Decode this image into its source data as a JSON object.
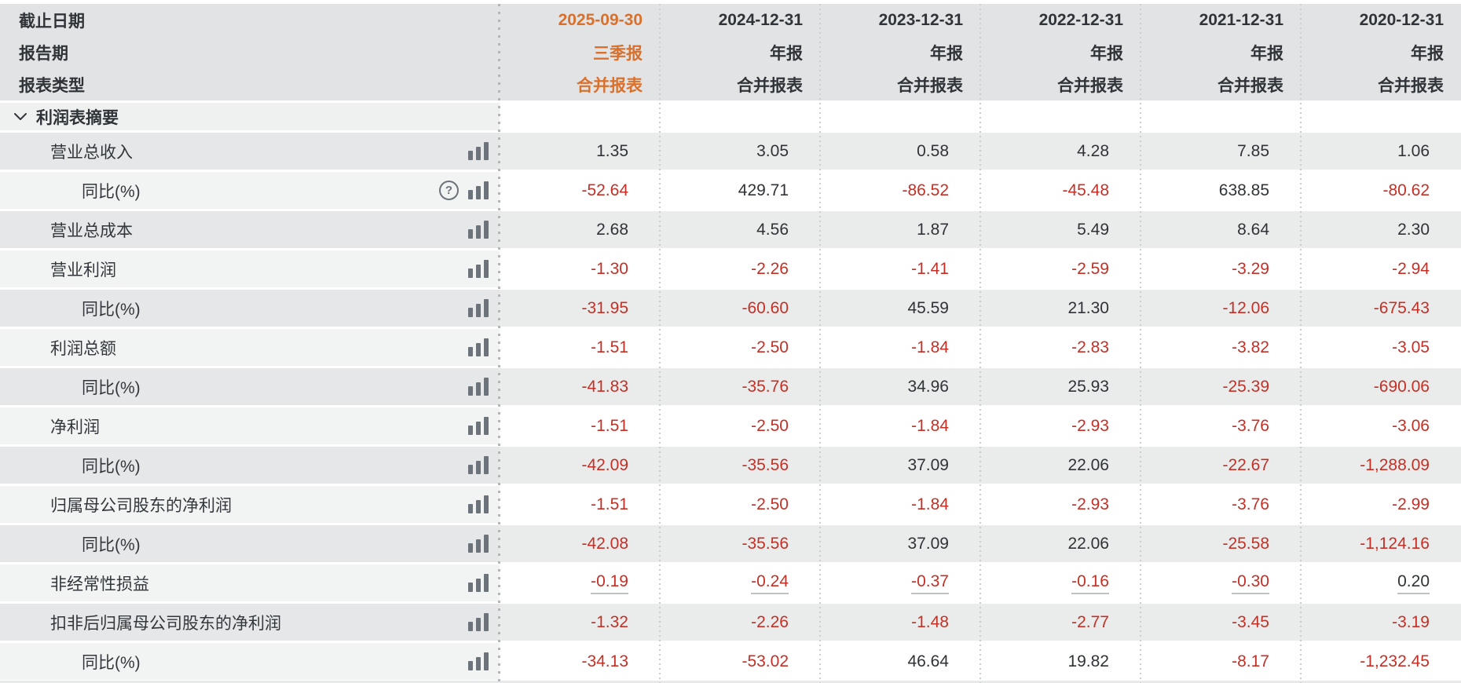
{
  "header": {
    "row_labels": [
      "截止日期",
      "报告期",
      "报表类型"
    ],
    "columns": [
      {
        "date": "2025-09-30",
        "period": "三季报",
        "report_type": "合并报表",
        "highlight": true
      },
      {
        "date": "2024-12-31",
        "period": "年报",
        "report_type": "合并报表",
        "highlight": false
      },
      {
        "date": "2023-12-31",
        "period": "年报",
        "report_type": "合并报表",
        "highlight": false
      },
      {
        "date": "2022-12-31",
        "period": "年报",
        "report_type": "合并报表",
        "highlight": false
      },
      {
        "date": "2021-12-31",
        "period": "年报",
        "report_type": "合并报表",
        "highlight": false
      },
      {
        "date": "2020-12-31",
        "period": "年报",
        "report_type": "合并报表",
        "highlight": false
      }
    ]
  },
  "section": {
    "title": "利润表摘要"
  },
  "icon_glyphs": {
    "help": "?"
  },
  "rows": [
    {
      "label": "营业总收入",
      "indent": 1,
      "icons": [
        "bar-chart-icon"
      ],
      "underline": false,
      "values": [
        "1.35",
        "3.05",
        "0.58",
        "4.28",
        "7.85",
        "1.06"
      ]
    },
    {
      "label": "同比(%)",
      "indent": 2,
      "icons": [
        "help-icon",
        "bar-chart-icon"
      ],
      "underline": false,
      "values": [
        "-52.64",
        "429.71",
        "-86.52",
        "-45.48",
        "638.85",
        "-80.62"
      ]
    },
    {
      "label": "营业总成本",
      "indent": 1,
      "icons": [
        "bar-chart-icon"
      ],
      "underline": false,
      "values": [
        "2.68",
        "4.56",
        "1.87",
        "5.49",
        "8.64",
        "2.30"
      ]
    },
    {
      "label": "营业利润",
      "indent": 1,
      "icons": [
        "bar-chart-icon"
      ],
      "underline": false,
      "values": [
        "-1.30",
        "-2.26",
        "-1.41",
        "-2.59",
        "-3.29",
        "-2.94"
      ]
    },
    {
      "label": "同比(%)",
      "indent": 2,
      "icons": [
        "bar-chart-icon"
      ],
      "underline": false,
      "values": [
        "-31.95",
        "-60.60",
        "45.59",
        "21.30",
        "-12.06",
        "-675.43"
      ]
    },
    {
      "label": "利润总额",
      "indent": 1,
      "icons": [
        "bar-chart-icon"
      ],
      "underline": false,
      "values": [
        "-1.51",
        "-2.50",
        "-1.84",
        "-2.83",
        "-3.82",
        "-3.05"
      ]
    },
    {
      "label": "同比(%)",
      "indent": 2,
      "icons": [
        "bar-chart-icon"
      ],
      "underline": false,
      "values": [
        "-41.83",
        "-35.76",
        "34.96",
        "25.93",
        "-25.39",
        "-690.06"
      ]
    },
    {
      "label": "净利润",
      "indent": 1,
      "icons": [
        "bar-chart-icon"
      ],
      "underline": false,
      "values": [
        "-1.51",
        "-2.50",
        "-1.84",
        "-2.93",
        "-3.76",
        "-3.06"
      ]
    },
    {
      "label": "同比(%)",
      "indent": 2,
      "icons": [
        "bar-chart-icon"
      ],
      "underline": false,
      "values": [
        "-42.09",
        "-35.56",
        "37.09",
        "22.06",
        "-22.67",
        "-1,288.09"
      ]
    },
    {
      "label": "归属母公司股东的净利润",
      "indent": 1,
      "icons": [
        "bar-chart-icon"
      ],
      "underline": false,
      "values": [
        "-1.51",
        "-2.50",
        "-1.84",
        "-2.93",
        "-3.76",
        "-2.99"
      ]
    },
    {
      "label": "同比(%)",
      "indent": 2,
      "icons": [
        "bar-chart-icon"
      ],
      "underline": false,
      "values": [
        "-42.08",
        "-35.56",
        "37.09",
        "22.06",
        "-25.58",
        "-1,124.16"
      ]
    },
    {
      "label": "非经常性损益",
      "indent": 1,
      "icons": [
        "bar-chart-icon"
      ],
      "underline": true,
      "values": [
        "-0.19",
        "-0.24",
        "-0.37",
        "-0.16",
        "-0.30",
        "0.20"
      ]
    },
    {
      "label": "扣非后归属母公司股东的净利润",
      "indent": 1,
      "icons": [
        "bar-chart-icon"
      ],
      "underline": false,
      "values": [
        "-1.32",
        "-2.26",
        "-1.48",
        "-2.77",
        "-3.45",
        "-3.19"
      ]
    },
    {
      "label": "同比(%)",
      "indent": 2,
      "icons": [
        "bar-chart-icon"
      ],
      "underline": false,
      "values": [
        "-34.13",
        "-53.02",
        "46.64",
        "19.82",
        "-8.17",
        "-1,232.45"
      ]
    }
  ],
  "colors": {
    "accent_orange": "#d9702c",
    "negative_red": "#c43026",
    "icon_gray": "#6d737a",
    "header_bg": "#e2e3e4"
  }
}
